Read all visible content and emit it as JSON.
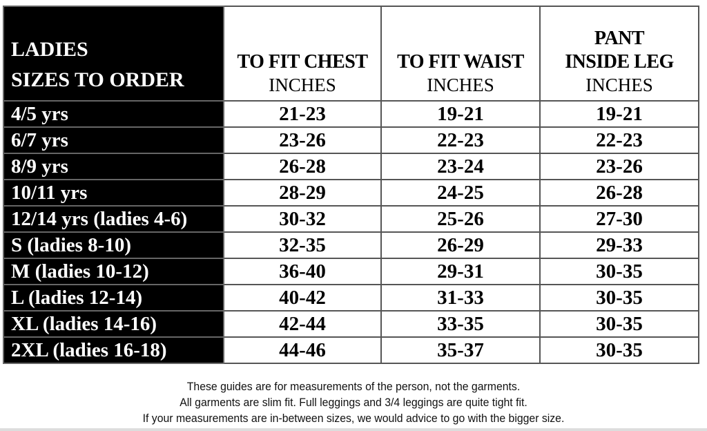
{
  "table": {
    "headers": [
      {
        "lines": [
          "LADIES",
          "SIZES TO ORDER"
        ]
      },
      {
        "title_lines": [
          "TO FIT CHEST"
        ],
        "unit": "INCHES"
      },
      {
        "title_lines": [
          "TO FIT WAIST"
        ],
        "unit": "INCHES"
      },
      {
        "title_lines": [
          "PANT",
          "INSIDE LEG"
        ],
        "unit": "INCHES"
      }
    ],
    "rows": [
      [
        "4/5 yrs",
        "21-23",
        "19-21",
        "19-21"
      ],
      [
        "6/7 yrs",
        "23-26",
        "22-23",
        "22-23"
      ],
      [
        "8/9 yrs",
        "26-28",
        "23-24",
        "23-26"
      ],
      [
        "10/11 yrs",
        "28-29",
        "24-25",
        "26-28"
      ],
      [
        "12/14 yrs (ladies 4-6)",
        "30-32",
        "25-26",
        "27-30"
      ],
      [
        "S (ladies 8-10)",
        "32-35",
        "26-29",
        "29-33"
      ],
      [
        "M (ladies 10-12)",
        "36-40",
        "29-31",
        "30-35"
      ],
      [
        "L (ladies 12-14)",
        "40-42",
        "31-33",
        "30-35"
      ],
      [
        "XL (ladies 14-16)",
        "42-44",
        "33-35",
        "30-35"
      ],
      [
        "2XL (ladies 16-18)",
        "44-46",
        "35-37",
        "30-35"
      ]
    ]
  },
  "notes": [
    "These guides are for measurements of the person, not the garments.",
    "All garments are slim fit. Full leggings and 3/4 leggings are quite tight fit.",
    "If your measurements are in-between sizes, we would advice to go with the bigger size."
  ],
  "colors": {
    "size_column_bg": "#000000",
    "size_column_text": "#ffffff",
    "border": "#555555"
  }
}
